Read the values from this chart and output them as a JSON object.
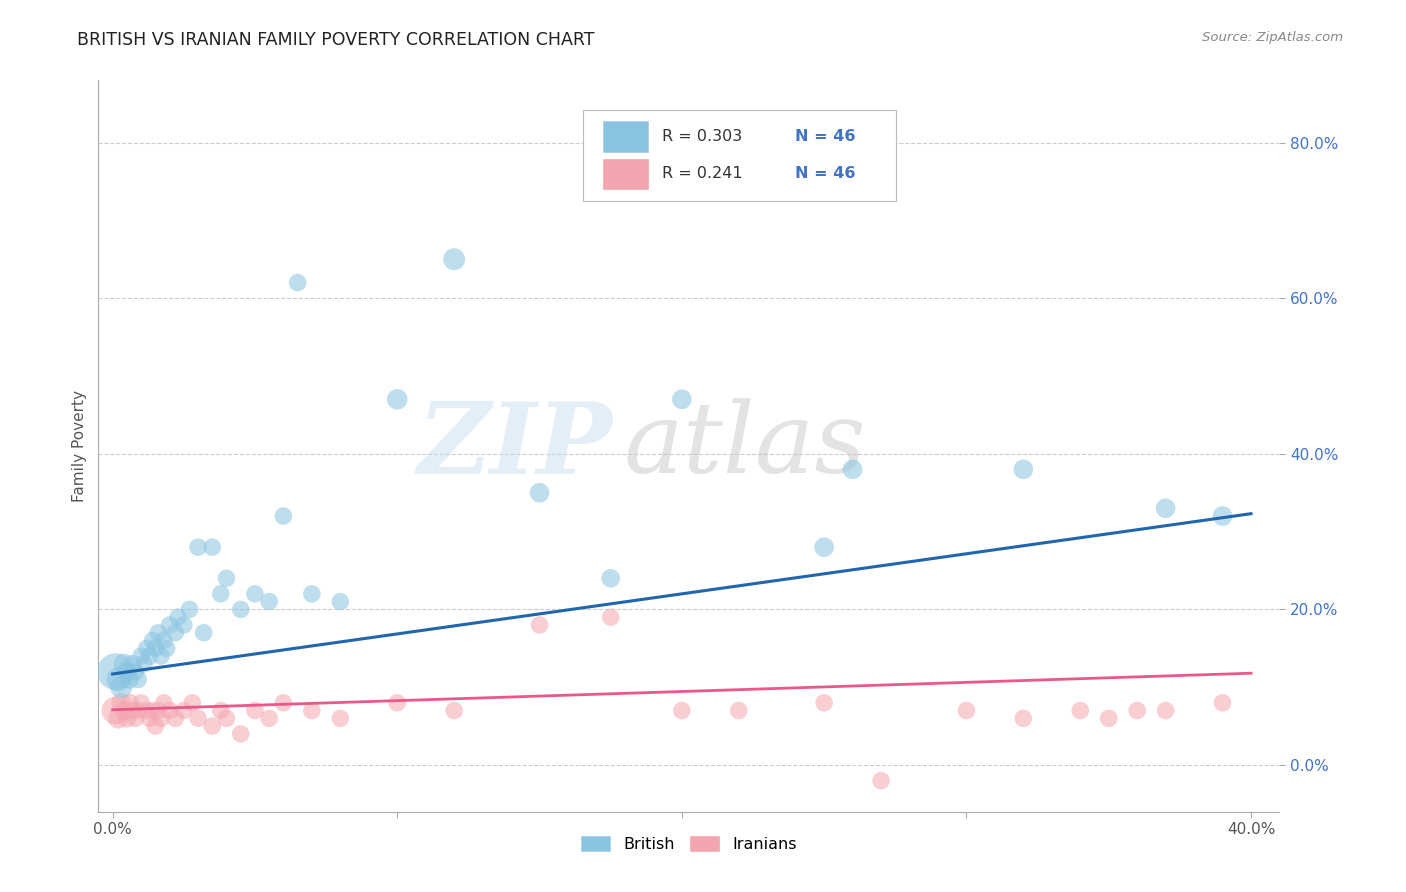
{
  "title": "BRITISH VS IRANIAN FAMILY POVERTY CORRELATION CHART",
  "source": "Source: ZipAtlas.com",
  "ylabel": "Family Poverty",
  "watermark_zip": "ZIP",
  "watermark_atlas": "atlas",
  "xlim": [
    -0.005,
    0.41
  ],
  "ylim": [
    -0.06,
    0.88
  ],
  "ytick_vals": [
    0.0,
    0.2,
    0.4,
    0.6,
    0.8
  ],
  "xtick_vals": [
    0.0,
    0.1,
    0.2,
    0.3,
    0.4
  ],
  "british_color": "#89c4e1",
  "iranian_color": "#f4a6b0",
  "british_line_color": "#2166ac",
  "iranian_line_color": "#e8588a",
  "legend_R_british": "R = 0.303",
  "legend_N_british": "N = 46",
  "legend_R_iranian": "R = 0.241",
  "legend_N_iranian": "N = 46",
  "british_x": [
    0.001,
    0.002,
    0.003,
    0.004,
    0.005,
    0.006,
    0.007,
    0.008,
    0.009,
    0.01,
    0.011,
    0.012,
    0.013,
    0.014,
    0.015,
    0.016,
    0.017,
    0.018,
    0.019,
    0.02,
    0.022,
    0.023,
    0.025,
    0.027,
    0.03,
    0.032,
    0.035,
    0.038,
    0.04,
    0.045,
    0.05,
    0.055,
    0.06,
    0.065,
    0.07,
    0.08,
    0.1,
    0.12,
    0.15,
    0.175,
    0.2,
    0.25,
    0.26,
    0.32,
    0.37,
    0.39
  ],
  "british_y": [
    0.12,
    0.11,
    0.1,
    0.13,
    0.12,
    0.11,
    0.13,
    0.12,
    0.11,
    0.14,
    0.13,
    0.15,
    0.14,
    0.16,
    0.15,
    0.17,
    0.14,
    0.16,
    0.15,
    0.18,
    0.17,
    0.19,
    0.18,
    0.2,
    0.28,
    0.17,
    0.28,
    0.22,
    0.24,
    0.2,
    0.22,
    0.21,
    0.32,
    0.62,
    0.22,
    0.21,
    0.47,
    0.65,
    0.35,
    0.24,
    0.47,
    0.28,
    0.38,
    0.38,
    0.33,
    0.32
  ],
  "british_size": [
    700,
    300,
    250,
    220,
    200,
    180,
    170,
    160,
    160,
    160,
    160,
    160,
    160,
    160,
    160,
    160,
    160,
    160,
    160,
    160,
    160,
    160,
    160,
    160,
    160,
    160,
    160,
    160,
    160,
    160,
    160,
    160,
    160,
    160,
    160,
    160,
    220,
    250,
    200,
    180,
    200,
    200,
    200,
    200,
    200,
    200
  ],
  "iranian_x": [
    0.001,
    0.002,
    0.003,
    0.004,
    0.005,
    0.006,
    0.007,
    0.008,
    0.009,
    0.01,
    0.012,
    0.013,
    0.014,
    0.015,
    0.016,
    0.017,
    0.018,
    0.02,
    0.022,
    0.025,
    0.028,
    0.03,
    0.035,
    0.038,
    0.04,
    0.045,
    0.05,
    0.055,
    0.06,
    0.07,
    0.08,
    0.1,
    0.12,
    0.15,
    0.175,
    0.2,
    0.22,
    0.25,
    0.27,
    0.3,
    0.32,
    0.34,
    0.35,
    0.36,
    0.37,
    0.39
  ],
  "iranian_y": [
    0.07,
    0.06,
    0.08,
    0.07,
    0.06,
    0.08,
    0.07,
    0.06,
    0.07,
    0.08,
    0.07,
    0.06,
    0.07,
    0.05,
    0.07,
    0.06,
    0.08,
    0.07,
    0.06,
    0.07,
    0.08,
    0.06,
    0.05,
    0.07,
    0.06,
    0.04,
    0.07,
    0.06,
    0.08,
    0.07,
    0.06,
    0.08,
    0.07,
    0.18,
    0.19,
    0.07,
    0.07,
    0.08,
    -0.02,
    0.07,
    0.06,
    0.07,
    0.06,
    0.07,
    0.07,
    0.08
  ],
  "iranian_size": [
    400,
    220,
    200,
    180,
    180,
    170,
    160,
    160,
    160,
    160,
    160,
    160,
    160,
    160,
    160,
    160,
    160,
    160,
    160,
    160,
    160,
    160,
    160,
    160,
    160,
    160,
    160,
    160,
    160,
    160,
    160,
    160,
    160,
    160,
    160,
    160,
    160,
    160,
    160,
    160,
    160,
    160,
    160,
    160,
    160,
    160
  ],
  "brit_trend": [
    0.117,
    0.323
  ],
  "iran_trend": [
    0.071,
    0.118
  ]
}
